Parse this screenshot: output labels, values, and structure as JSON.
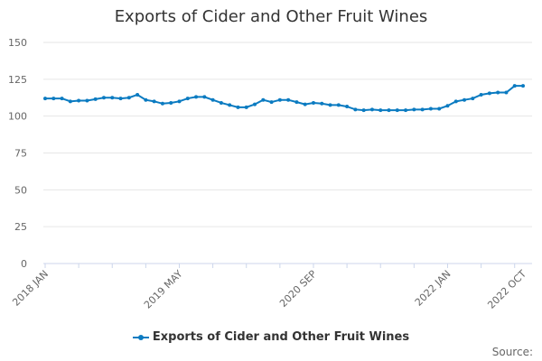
{
  "chart_data": {
    "type": "line",
    "title": "Exports of Cider and Other Fruit Wines",
    "x_start": "2018 JAN",
    "x_end": "2022 OCT",
    "frequency": "monthly",
    "x_tick_labels": [
      "2018 JAN",
      "2019 MAY",
      "2020 SEP",
      "2022 JAN",
      "2022 OCT"
    ],
    "y_ticks": [
      0,
      25,
      50,
      75,
      100,
      125,
      150
    ],
    "ylim": [
      0,
      150
    ],
    "grid": true,
    "legend_position": "bottom",
    "series": [
      {
        "name": "Exports of Cider and Other Fruit Wines",
        "color": "#0b7bc1",
        "values": [
          112,
          112,
          112,
          110,
          110.5,
          110.5,
          111.5,
          112.5,
          112.5,
          112,
          112.5,
          114.5,
          111,
          110,
          108.5,
          109,
          110,
          112,
          113,
          113,
          111,
          109,
          107.5,
          106,
          106,
          108,
          111,
          109.5,
          111,
          111,
          109.5,
          108,
          109,
          108.5,
          107.5,
          107.5,
          106.5,
          104.5,
          104,
          104.5,
          104,
          104,
          104,
          104,
          104.5,
          104.5,
          105,
          105,
          107,
          110,
          111,
          112,
          114.5,
          115.5,
          116,
          116,
          120.5,
          120.5
        ]
      }
    ]
  },
  "source_label": "Source:"
}
